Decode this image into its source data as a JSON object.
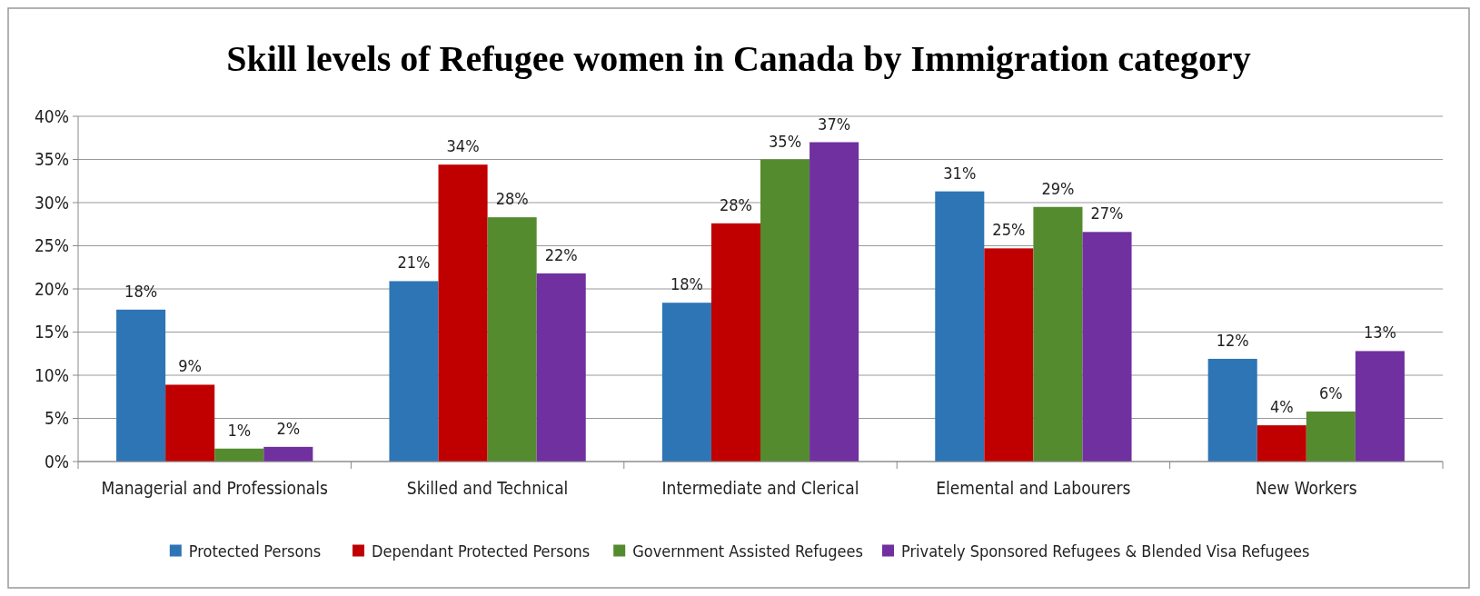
{
  "chart_data": {
    "type": "bar",
    "title": "Skill levels of Refugee women in Canada by Immigration category",
    "categories": [
      "Managerial and Professionals",
      "Skilled and Technical",
      "Intermediate and Clerical",
      "Elemental and Labourers",
      "New Workers"
    ],
    "series": [
      {
        "name": "Protected Persons",
        "color": "#2e75b6",
        "values": [
          17.6,
          20.9,
          18.4,
          31.3,
          11.9
        ],
        "value_labels": [
          "18%",
          "21%",
          "18%",
          "31%",
          "12%"
        ]
      },
      {
        "name": "Dependant Protected Persons",
        "color": "#c00000",
        "values": [
          8.9,
          34.4,
          27.6,
          24.7,
          4.2
        ],
        "value_labels": [
          "9%",
          "34%",
          "28%",
          "25%",
          "4%"
        ]
      },
      {
        "name": "Government Assisted Refugees",
        "color": "#558b2f",
        "values": [
          1.5,
          28.3,
          35.0,
          29.5,
          5.8
        ],
        "value_labels": [
          "1%",
          "28%",
          "35%",
          "29%",
          "6%"
        ]
      },
      {
        "name": "Privately Sponsored Refugees & Blended Visa Refugees",
        "color": "#7030a0",
        "values": [
          1.7,
          21.8,
          37.0,
          26.6,
          12.8
        ],
        "value_labels": [
          "2%",
          "22%",
          "37%",
          "27%",
          "13%"
        ]
      }
    ],
    "ylim": [
      0,
      40
    ],
    "yticks": [
      {
        "value": 0,
        "label": "0%"
      },
      {
        "value": 5,
        "label": "5%"
      },
      {
        "value": 10,
        "label": "10%"
      },
      {
        "value": 15,
        "label": "15%"
      },
      {
        "value": 20,
        "label": "20%"
      },
      {
        "value": 25,
        "label": "25%"
      },
      {
        "value": 30,
        "label": "30%"
      },
      {
        "value": 35,
        "label": "35%"
      },
      {
        "value": 40,
        "label": "40%"
      }
    ],
    "grid": "y",
    "legend": "bottom"
  }
}
